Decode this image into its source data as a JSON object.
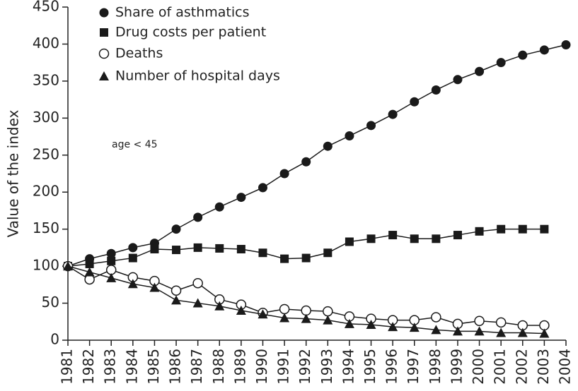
{
  "chart_data": {
    "type": "line",
    "y_label": "Value of the index",
    "annotation": "age < 45",
    "annotation_color": "#cc0000",
    "x": [
      1981,
      1982,
      1983,
      1984,
      1985,
      1986,
      1987,
      1988,
      1989,
      1990,
      1991,
      1992,
      1993,
      1994,
      1995,
      1996,
      1997,
      1998,
      1999,
      2000,
      2001,
      2002,
      2003,
      2004
    ],
    "xlim": [
      1981,
      2004
    ],
    "xticks": [
      1981,
      1982,
      1983,
      1984,
      1985,
      1986,
      1987,
      1988,
      1989,
      1990,
      1991,
      1992,
      1993,
      1994,
      1995,
      1996,
      1997,
      1998,
      1999,
      2000,
      2001,
      2002,
      2003,
      2004
    ],
    "ylim": [
      0,
      450
    ],
    "yticks": [
      0,
      50,
      100,
      150,
      200,
      250,
      300,
      350,
      400,
      450
    ],
    "legend": "top-left",
    "series": [
      {
        "name": "Share of asthmatics",
        "color": "#1a1a1a",
        "marker": "circle",
        "values": [
          100,
          110,
          117,
          125,
          131,
          150,
          166,
          180,
          193,
          206,
          225,
          241,
          262,
          276,
          290,
          305,
          322,
          338,
          352,
          363,
          375,
          385,
          392,
          399
        ]
      },
      {
        "name": "Drug costs per patient",
        "color": "#1a1a1a",
        "marker": "square",
        "values": [
          100,
          103,
          107,
          111,
          123,
          122,
          125,
          124,
          123,
          118,
          110,
          111,
          118,
          133,
          137,
          142,
          137,
          137,
          142,
          147,
          150,
          150,
          150,
          null
        ]
      },
      {
        "name": "Deaths",
        "color": "#1a1a1a",
        "marker": "open-circle",
        "values": [
          100,
          82,
          95,
          85,
          80,
          67,
          77,
          55,
          48,
          37,
          42,
          40,
          39,
          32,
          29,
          27,
          27,
          31,
          22,
          26,
          24,
          20,
          20,
          null
        ]
      },
      {
        "name": "Number of hospital days",
        "color": "#1a1a1a",
        "marker": "triangle",
        "values": [
          100,
          92,
          84,
          76,
          71,
          54,
          50,
          46,
          40,
          35,
          30,
          29,
          27,
          22,
          21,
          18,
          17,
          14,
          12,
          12,
          10,
          10,
          9,
          null
        ]
      }
    ]
  }
}
